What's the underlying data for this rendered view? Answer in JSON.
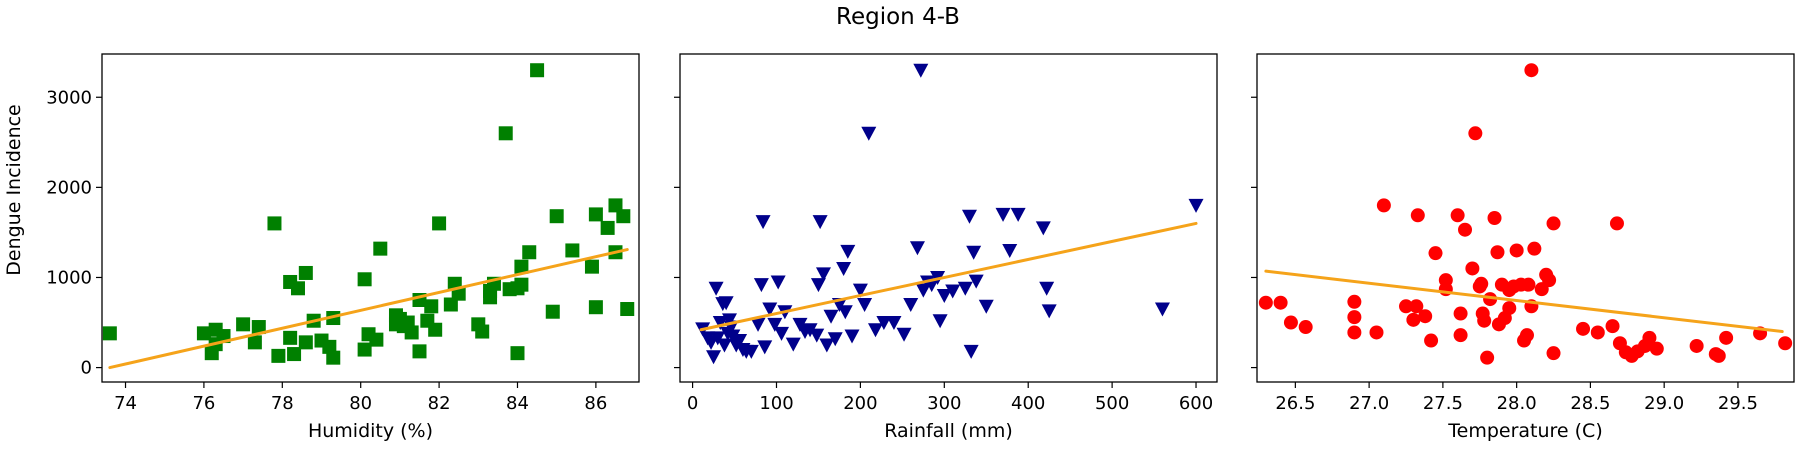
{
  "figure": {
    "title": "Region 4-B",
    "ylabel": "Dengue Incidence",
    "trend_color": "#f5a31a"
  },
  "chart_data": [
    {
      "type": "scatter",
      "xlabel": "Humidity (%)",
      "ylabel": "Dengue Incidence",
      "xlim": [
        73.4,
        87.1
      ],
      "ylim": [
        -160,
        3480
      ],
      "xticks": [
        74,
        76,
        78,
        80,
        82,
        84,
        86
      ],
      "yticks": [
        0,
        1000,
        2000,
        3000
      ],
      "marker": "square",
      "color": "#008000",
      "trend": {
        "x": [
          73.6,
          86.8
        ],
        "y": [
          0,
          1310
        ]
      },
      "points": [
        [
          73.6,
          380
        ],
        [
          76.0,
          380
        ],
        [
          76.2,
          160
        ],
        [
          76.3,
          260
        ],
        [
          76.3,
          420
        ],
        [
          76.5,
          350
        ],
        [
          77.0,
          480
        ],
        [
          77.3,
          280
        ],
        [
          77.4,
          450
        ],
        [
          77.8,
          1600
        ],
        [
          77.9,
          130
        ],
        [
          78.2,
          330
        ],
        [
          78.2,
          950
        ],
        [
          78.3,
          150
        ],
        [
          78.4,
          880
        ],
        [
          78.6,
          1050
        ],
        [
          78.6,
          280
        ],
        [
          78.8,
          520
        ],
        [
          79.0,
          300
        ],
        [
          79.2,
          230
        ],
        [
          79.3,
          550
        ],
        [
          79.3,
          110
        ],
        [
          80.1,
          980
        ],
        [
          80.1,
          200
        ],
        [
          80.2,
          370
        ],
        [
          80.4,
          310
        ],
        [
          80.5,
          1320
        ],
        [
          80.9,
          580
        ],
        [
          80.9,
          480
        ],
        [
          81.0,
          540
        ],
        [
          81.1,
          460
        ],
        [
          81.2,
          500
        ],
        [
          81.3,
          390
        ],
        [
          81.5,
          750
        ],
        [
          81.5,
          180
        ],
        [
          81.7,
          520
        ],
        [
          81.8,
          680
        ],
        [
          81.9,
          420
        ],
        [
          82.0,
          1600
        ],
        [
          82.3,
          700
        ],
        [
          82.4,
          930
        ],
        [
          82.5,
          820
        ],
        [
          83.0,
          480
        ],
        [
          83.1,
          400
        ],
        [
          83.3,
          850
        ],
        [
          83.3,
          780
        ],
        [
          83.4,
          930
        ],
        [
          83.7,
          2600
        ],
        [
          83.8,
          870
        ],
        [
          84.0,
          880
        ],
        [
          84.0,
          160
        ],
        [
          84.1,
          1120
        ],
        [
          84.1,
          920
        ],
        [
          84.3,
          1280
        ],
        [
          84.5,
          3300
        ],
        [
          84.9,
          620
        ],
        [
          85.0,
          1680
        ],
        [
          85.4,
          1300
        ],
        [
          85.9,
          1120
        ],
        [
          86.0,
          1700
        ],
        [
          86.0,
          670
        ],
        [
          86.3,
          1550
        ],
        [
          86.5,
          1800
        ],
        [
          86.5,
          1280
        ],
        [
          86.7,
          1680
        ],
        [
          86.8,
          650
        ]
      ]
    },
    {
      "type": "scatter",
      "xlabel": "Rainfall (mm)",
      "ylabel": "",
      "xlim": [
        -15,
        625
      ],
      "ylim": [
        -160,
        3480
      ],
      "xticks": [
        0,
        100,
        200,
        300,
        400,
        500,
        600
      ],
      "yticks": [
        0,
        1000,
        2000,
        3000
      ],
      "marker": "triangle-down",
      "color": "#00008b",
      "trend": {
        "x": [
          10,
          600
        ],
        "y": [
          420,
          1600
        ]
      },
      "points": [
        [
          12,
          430
        ],
        [
          18,
          330
        ],
        [
          22,
          280
        ],
        [
          25,
          120
        ],
        [
          28,
          880
        ],
        [
          30,
          330
        ],
        [
          33,
          500
        ],
        [
          36,
          710
        ],
        [
          38,
          250
        ],
        [
          40,
          720
        ],
        [
          42,
          380
        ],
        [
          44,
          530
        ],
        [
          46,
          450
        ],
        [
          48,
          350
        ],
        [
          52,
          250
        ],
        [
          56,
          300
        ],
        [
          60,
          200
        ],
        [
          64,
          180
        ],
        [
          70,
          180
        ],
        [
          78,
          480
        ],
        [
          82,
          920
        ],
        [
          84,
          1620
        ],
        [
          86,
          230
        ],
        [
          92,
          650
        ],
        [
          98,
          480
        ],
        [
          102,
          950
        ],
        [
          106,
          380
        ],
        [
          110,
          620
        ],
        [
          120,
          260
        ],
        [
          128,
          480
        ],
        [
          134,
          400
        ],
        [
          140,
          420
        ],
        [
          148,
          360
        ],
        [
          150,
          920
        ],
        [
          152,
          1620
        ],
        [
          156,
          1040
        ],
        [
          160,
          250
        ],
        [
          165,
          570
        ],
        [
          170,
          320
        ],
        [
          175,
          700
        ],
        [
          180,
          1100
        ],
        [
          182,
          620
        ],
        [
          185,
          1290
        ],
        [
          190,
          350
        ],
        [
          200,
          860
        ],
        [
          205,
          700
        ],
        [
          210,
          2600
        ],
        [
          218,
          420
        ],
        [
          228,
          500
        ],
        [
          240,
          500
        ],
        [
          252,
          370
        ],
        [
          260,
          700
        ],
        [
          268,
          1330
        ],
        [
          272,
          3300
        ],
        [
          275,
          860
        ],
        [
          280,
          950
        ],
        [
          285,
          920
        ],
        [
          292,
          1000
        ],
        [
          295,
          520
        ],
        [
          300,
          800
        ],
        [
          310,
          850
        ],
        [
          325,
          880
        ],
        [
          330,
          1680
        ],
        [
          332,
          180
        ],
        [
          335,
          1280
        ],
        [
          338,
          960
        ],
        [
          350,
          680
        ],
        [
          370,
          1700
        ],
        [
          378,
          1300
        ],
        [
          388,
          1700
        ],
        [
          418,
          1550
        ],
        [
          422,
          880
        ],
        [
          425,
          630
        ],
        [
          560,
          650
        ],
        [
          600,
          1800
        ]
      ]
    },
    {
      "type": "scatter",
      "xlabel": "Temperature (C)",
      "ylabel": "",
      "xlim": [
        26.24,
        29.88
      ],
      "ylim": [
        -160,
        3480
      ],
      "xticks": [
        26.5,
        27.0,
        27.5,
        28.0,
        28.5,
        29.0,
        29.5
      ],
      "yticks": [
        0,
        1000,
        2000,
        3000
      ],
      "marker": "circle",
      "color": "#ff0000",
      "trend": {
        "x": [
          26.3,
          29.8
        ],
        "y": [
          1070,
          400
        ]
      },
      "points": [
        [
          26.3,
          720
        ],
        [
          26.4,
          720
        ],
        [
          26.47,
          500
        ],
        [
          26.57,
          450
        ],
        [
          26.9,
          730
        ],
        [
          26.9,
          560
        ],
        [
          26.9,
          390
        ],
        [
          27.05,
          390
        ],
        [
          27.1,
          1800
        ],
        [
          27.25,
          680
        ],
        [
          27.3,
          530
        ],
        [
          27.32,
          680
        ],
        [
          27.33,
          1690
        ],
        [
          27.38,
          570
        ],
        [
          27.42,
          300
        ],
        [
          27.45,
          1270
        ],
        [
          27.52,
          870
        ],
        [
          27.52,
          970
        ],
        [
          27.6,
          1690
        ],
        [
          27.62,
          600
        ],
        [
          27.62,
          360
        ],
        [
          27.65,
          1530
        ],
        [
          27.7,
          1100
        ],
        [
          27.72,
          2600
        ],
        [
          27.75,
          900
        ],
        [
          27.76,
          930
        ],
        [
          27.77,
          600
        ],
        [
          27.78,
          520
        ],
        [
          27.8,
          110
        ],
        [
          27.82,
          760
        ],
        [
          27.85,
          1660
        ],
        [
          27.87,
          1280
        ],
        [
          27.88,
          480
        ],
        [
          27.9,
          920
        ],
        [
          27.92,
          550
        ],
        [
          27.95,
          660
        ],
        [
          27.95,
          860
        ],
        [
          27.98,
          900
        ],
        [
          28.0,
          1300
        ],
        [
          28.03,
          920
        ],
        [
          28.05,
          300
        ],
        [
          28.07,
          360
        ],
        [
          28.08,
          920
        ],
        [
          28.1,
          680
        ],
        [
          28.1,
          3300
        ],
        [
          28.12,
          1320
        ],
        [
          28.17,
          870
        ],
        [
          28.2,
          1030
        ],
        [
          28.22,
          970
        ],
        [
          28.25,
          1600
        ],
        [
          28.25,
          160
        ],
        [
          28.45,
          430
        ],
        [
          28.55,
          390
        ],
        [
          28.65,
          460
        ],
        [
          28.68,
          1600
        ],
        [
          28.7,
          270
        ],
        [
          28.74,
          170
        ],
        [
          28.78,
          130
        ],
        [
          28.82,
          180
        ],
        [
          28.87,
          240
        ],
        [
          28.9,
          330
        ],
        [
          28.95,
          210
        ],
        [
          29.22,
          240
        ],
        [
          29.35,
          150
        ],
        [
          29.37,
          130
        ],
        [
          29.42,
          330
        ],
        [
          29.65,
          380
        ],
        [
          29.82,
          270
        ]
      ]
    }
  ]
}
